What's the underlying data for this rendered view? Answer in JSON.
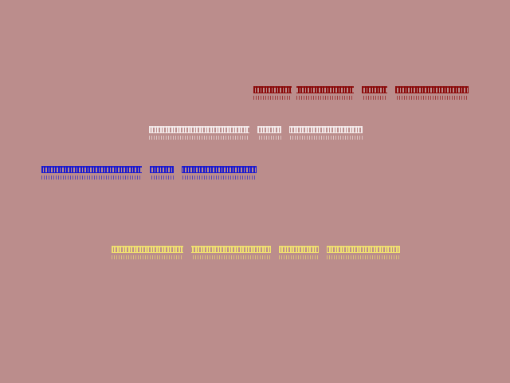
{
  "background": "#bb8d8c",
  "lines": [
    {
      "color": "#8b0a0a"
    },
    {
      "color": "#f2e8e8"
    },
    {
      "color": "#1a1ad0"
    },
    {
      "color": "#f0e070"
    }
  ]
}
